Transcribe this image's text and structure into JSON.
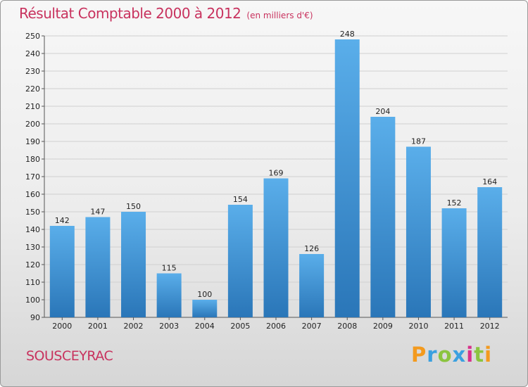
{
  "colors": {
    "accent": "#c8325e",
    "bar_light": "#5aaeea",
    "bar_dark": "#2a76b8",
    "grid": "#d0d0d0",
    "logo_p": "#f39a1e",
    "logo_r": "#3aa0e0",
    "logo_o": "#8bc43f",
    "logo_x": "#3aa0e0",
    "logo_i": "#d8308a",
    "logo_t": "#8bc43f",
    "logo_i2": "#f39a1e"
  },
  "footer": {
    "city": "SOUSCEYRAC",
    "logo_letters": [
      "P",
      "r",
      "o",
      "x",
      "i",
      "t",
      "i"
    ]
  },
  "chart_data": {
    "type": "bar",
    "title": "Résultat Comptable 2000 à 2012",
    "subtitle": "(en milliers d'€)",
    "xlabel": "",
    "ylabel": "",
    "categories": [
      "2000",
      "2001",
      "2002",
      "2003",
      "2004",
      "2005",
      "2006",
      "2007",
      "2008",
      "2009",
      "2010",
      "2011",
      "2012"
    ],
    "values": [
      142,
      147,
      150,
      115,
      100,
      154,
      169,
      126,
      248,
      204,
      187,
      152,
      164
    ],
    "ylim": [
      90,
      250
    ],
    "yticks": [
      90,
      100,
      110,
      120,
      130,
      140,
      150,
      160,
      170,
      180,
      190,
      200,
      210,
      220,
      230,
      240,
      250
    ],
    "grid": true,
    "legend": "none"
  }
}
